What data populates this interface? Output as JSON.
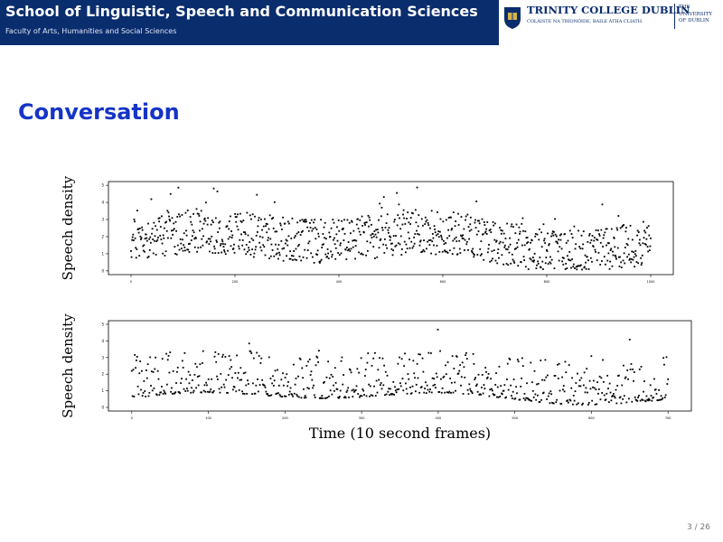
{
  "header": {
    "title": "School of Linguistic, Speech and Communication Sciences",
    "subtitle": "Faculty of Arts, Humanities and Social Sciences",
    "logo": {
      "name": "TRINITY COLLEGE DUBLIN",
      "irish": "COLÁISTE NA TRÍONÓIDE, BAILE ÁTHA CLIATH",
      "university_lines": [
        "THE",
        "UNIVERSITY",
        "OF DUBLIN"
      ]
    }
  },
  "slide": {
    "title": "Conversation",
    "page_number": "3 / 26"
  },
  "colors": {
    "header_bg": "#0a2d6e",
    "title": "#1534c8"
  },
  "chart_data": [
    {
      "type": "scatter",
      "ylabel": "Speech density",
      "xlabel": "",
      "x_ticks": [
        0,
        200,
        400,
        600,
        800,
        1000
      ],
      "y_ticks": [
        "0",
        "1",
        "2",
        "3",
        "4",
        "5"
      ],
      "xlim": [
        0,
        1000
      ],
      "ylim": [
        0,
        5
      ],
      "n_points": 1000,
      "y_mean_range": [
        1.0,
        2.5
      ]
    },
    {
      "type": "scatter",
      "ylabel": "Speech density",
      "xlabel": "Time (10 second frames)",
      "x_ticks": [
        0,
        100,
        200,
        300,
        400,
        500,
        600,
        700
      ],
      "y_ticks": [
        "0",
        "1",
        "2",
        "3",
        "4",
        "5"
      ],
      "xlim": [
        0,
        700
      ],
      "ylim": [
        0,
        5
      ],
      "n_points": 700,
      "y_mean_range": [
        0.3,
        1.2
      ]
    }
  ]
}
